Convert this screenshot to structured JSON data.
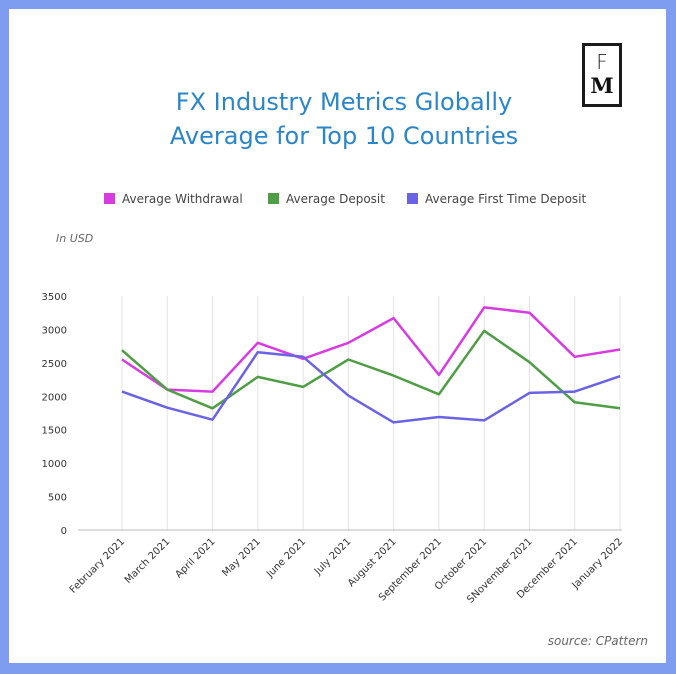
{
  "logo": {
    "top": "F",
    "bottom": "M"
  },
  "chart_data": {
    "type": "line",
    "title": [
      "FX Industry Metrics Globally",
      "Average for Top 10 Countries"
    ],
    "unit_label": "In USD",
    "source": "source: CPattern",
    "categories": [
      "February 2021",
      "March 2021",
      "April 2021",
      "May 2021",
      "June 2021",
      "July 2021",
      "August 2021",
      "September 2021",
      "October 2021",
      "SNovember 2021",
      "December 2021",
      "January 2022"
    ],
    "ylim": [
      0,
      3500
    ],
    "yticks": [
      0,
      500,
      1000,
      1500,
      2000,
      2500,
      3000,
      3500
    ],
    "grid": "vertical",
    "legend_position": "top",
    "series": [
      {
        "name": "Average Withdrawal",
        "color": "#d63ce0",
        "values": [
          2550,
          2100,
          2070,
          2800,
          2560,
          2800,
          3170,
          2320,
          3330,
          3250,
          2590,
          2700
        ]
      },
      {
        "name": "Average Deposit",
        "color": "#4f9e45",
        "values": [
          2690,
          2100,
          1820,
          2290,
          2140,
          2550,
          2310,
          2030,
          2980,
          2510,
          1910,
          1820
        ]
      },
      {
        "name": "Average First Time Deposit",
        "color": "#6a63e4",
        "values": [
          2070,
          1830,
          1650,
          2660,
          2590,
          2010,
          1610,
          1690,
          1640,
          2050,
          2070,
          2300
        ]
      }
    ]
  }
}
